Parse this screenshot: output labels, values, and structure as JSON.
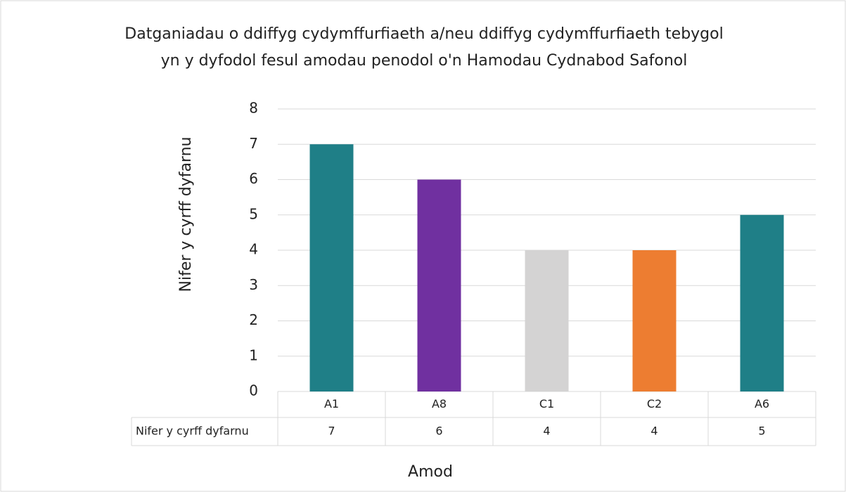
{
  "chart_data": {
    "type": "bar",
    "title": "Datganiadau o ddiffyg cydymffurfiaeth a/neu ddiffyg cydymffurfiaeth tebygol yn y dyfodol fesul amodau penodol o'n Hamodau Cydnabod Safonol",
    "x_label": "Amod",
    "y_label": "Nifer y cyrff dyfarnu",
    "categories": [
      "A1",
      "A8",
      "C1",
      "C2",
      "A6"
    ],
    "series": [
      {
        "name": "Nifer y cyrff dyfarnu",
        "values": [
          7,
          6,
          4,
          4,
          5
        ],
        "colors": [
          "#1f7f87",
          "#7030a0",
          "#d4d3d3",
          "#ed7d31",
          "#1f7f87"
        ]
      }
    ],
    "ylim": [
      0,
      8
    ],
    "yticks": [
      0,
      1,
      2,
      3,
      4,
      5,
      6,
      7,
      8
    ],
    "grid": true,
    "data_table": true
  }
}
